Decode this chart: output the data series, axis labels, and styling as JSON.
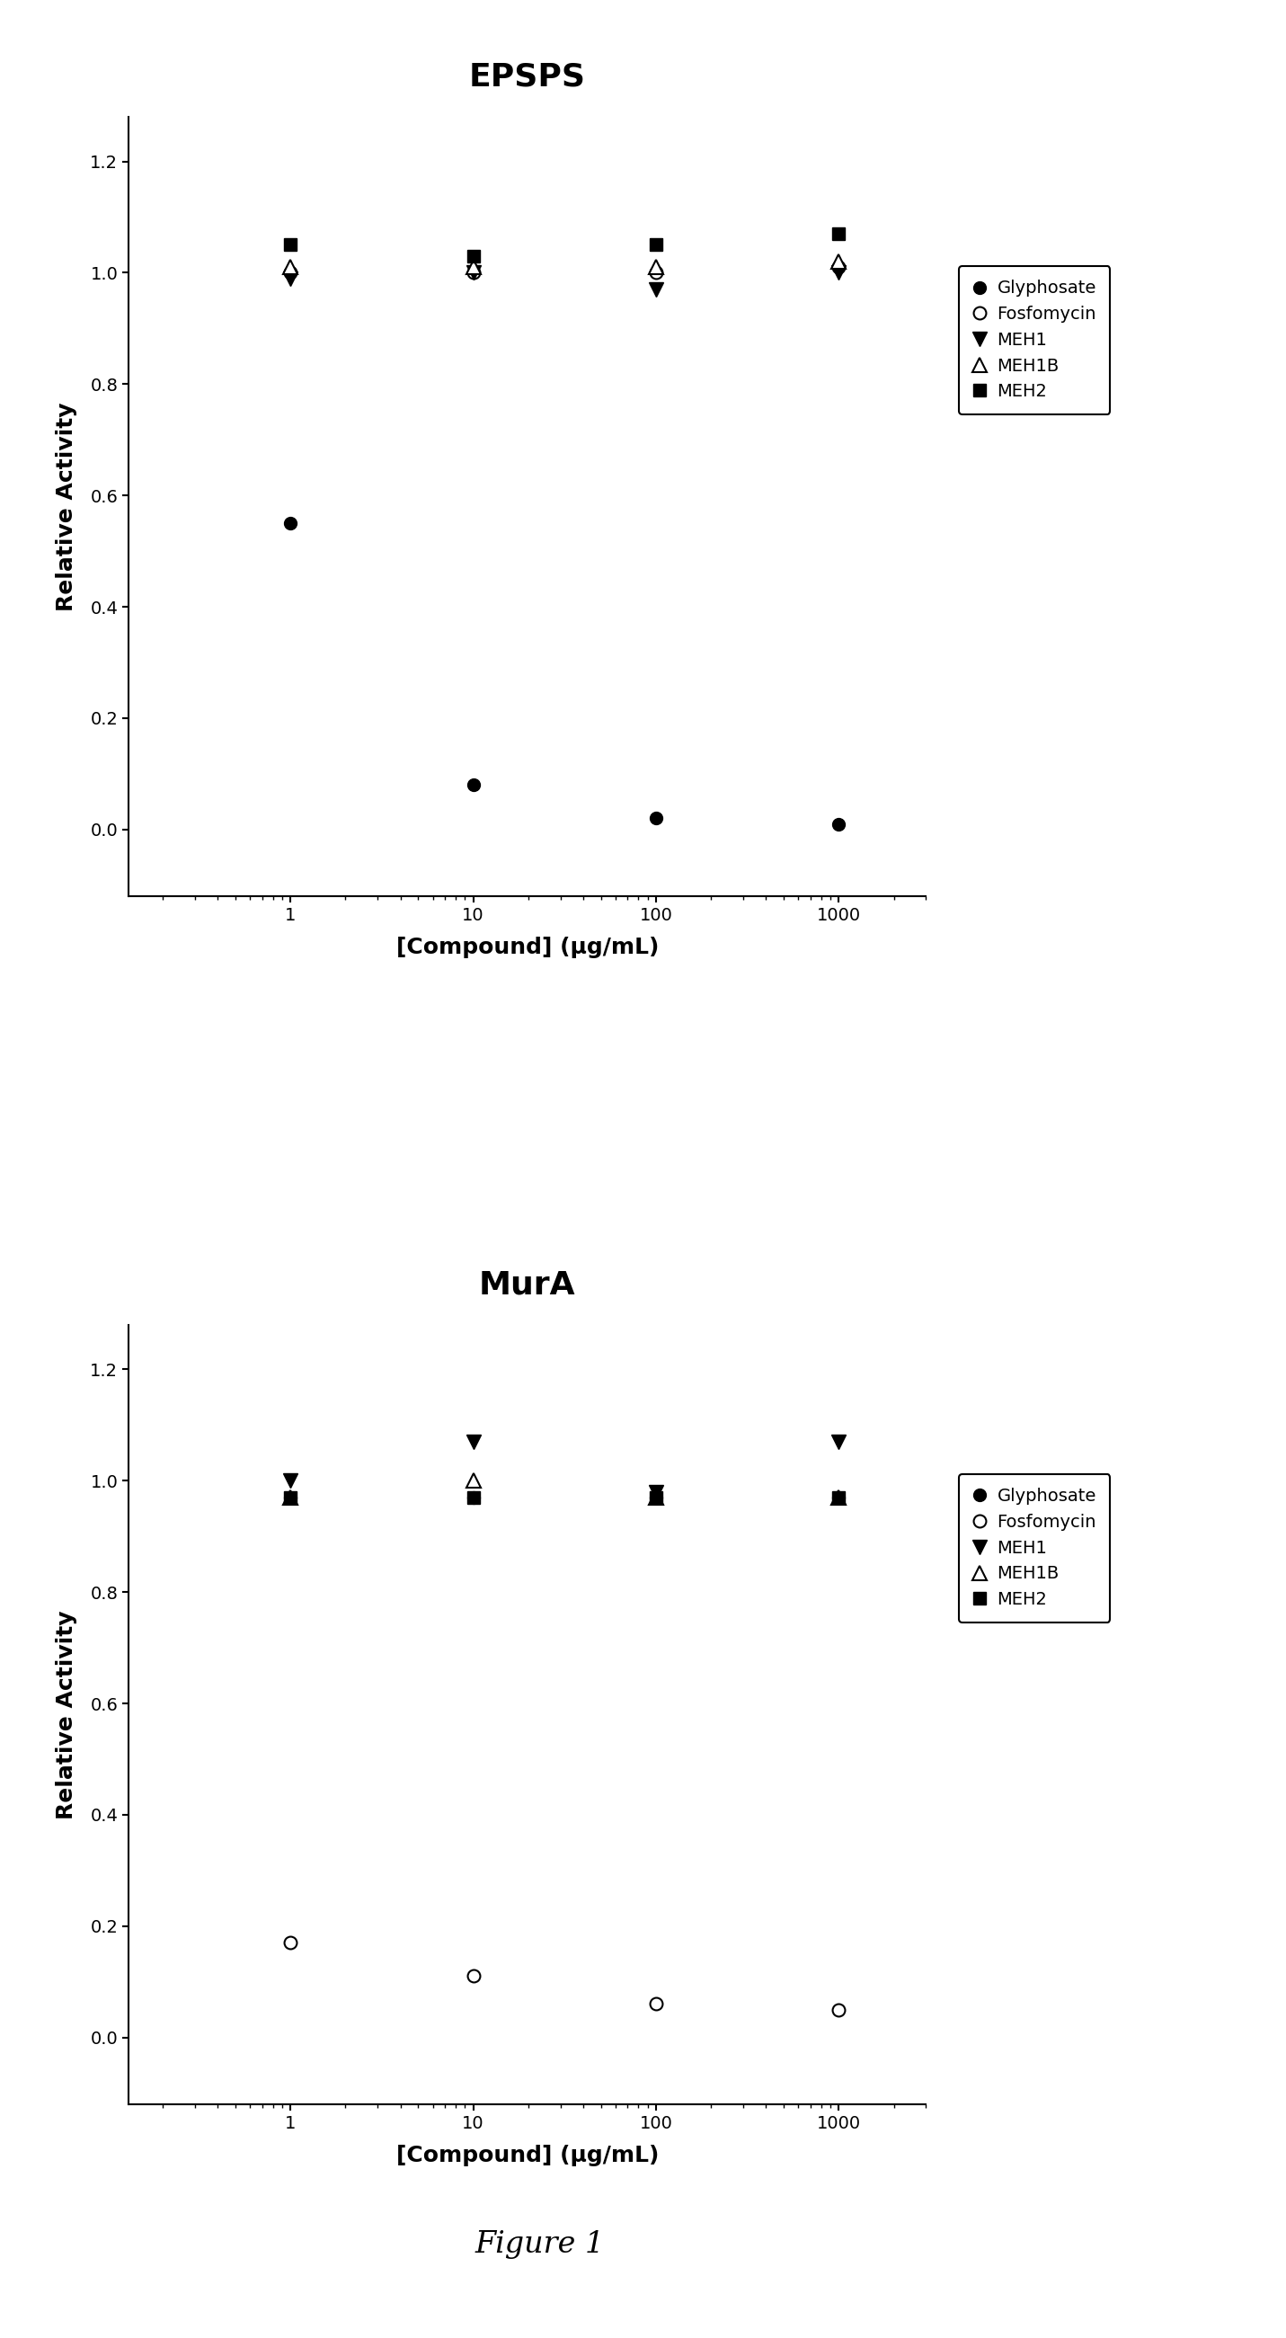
{
  "epsps": {
    "title": "EPSPS",
    "x": [
      1,
      10,
      100,
      1000
    ],
    "glyphosate": [
      0.55,
      0.08,
      0.02,
      0.01
    ],
    "fosfomycin": [
      1.0,
      1.0,
      1.0,
      1.01
    ],
    "meh1": [
      0.99,
      1.0,
      0.97,
      1.0
    ],
    "meh1b": [
      1.01,
      1.01,
      1.01,
      1.02
    ],
    "meh2": [
      1.05,
      1.03,
      1.05,
      1.07
    ],
    "ylim": [
      -0.12,
      1.28
    ],
    "yticks": [
      0.0,
      0.2,
      0.4,
      0.6,
      0.8,
      1.0,
      1.2
    ]
  },
  "mura": {
    "title": "MurA",
    "x": [
      1,
      10,
      100,
      1000
    ],
    "glyphosate": [
      0.97,
      0.97,
      0.97,
      0.97
    ],
    "fosfomycin": [
      0.17,
      0.11,
      0.06,
      0.05
    ],
    "meh1": [
      1.0,
      1.07,
      0.98,
      1.07
    ],
    "meh1b": [
      0.97,
      1.0,
      0.97,
      0.97
    ],
    "meh2": [
      0.97,
      0.97,
      0.97,
      0.97
    ],
    "ylim": [
      -0.12,
      1.28
    ],
    "yticks": [
      0.0,
      0.2,
      0.4,
      0.6,
      0.8,
      1.0,
      1.2
    ]
  },
  "xlabel": "[Compound] (μg/mL)",
  "ylabel": "Relative Activity",
  "legend_labels": [
    "Glyphosate",
    "Fosfomycin",
    "MEH1",
    "MEH1B",
    "MEH2"
  ],
  "marker_size": 10,
  "figure_label": "Figure 1",
  "bg_color": "#ffffff"
}
